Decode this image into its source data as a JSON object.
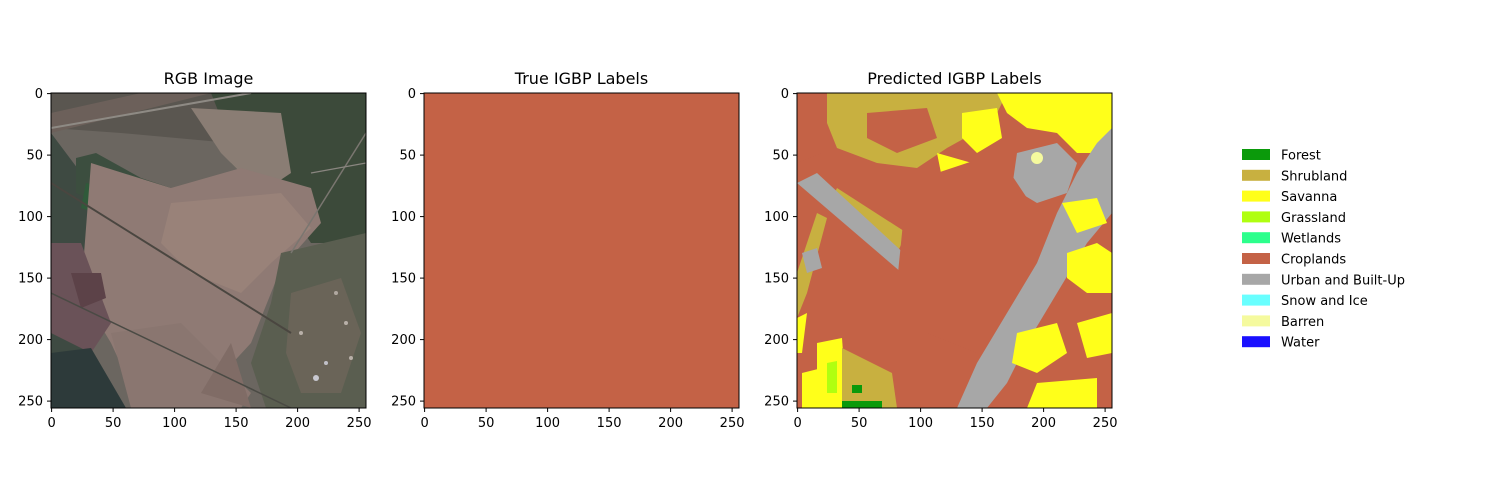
{
  "panels": [
    {
      "title": "RGB Image",
      "xticks": [
        "0",
        "50",
        "100",
        "150",
        "200",
        "250"
      ],
      "yticks": [
        "0",
        "50",
        "100",
        "150",
        "200",
        "250"
      ]
    },
    {
      "title": "True IGBP Labels",
      "xticks": [
        "0",
        "50",
        "100",
        "150",
        "200",
        "250"
      ],
      "yticks": [
        "0",
        "50",
        "100",
        "150",
        "200",
        "250"
      ]
    },
    {
      "title": "Predicted IGBP Labels",
      "xticks": [
        "0",
        "50",
        "100",
        "150",
        "200",
        "250"
      ],
      "yticks": [
        "0",
        "50",
        "100",
        "150",
        "200",
        "250"
      ]
    }
  ],
  "legend": [
    {
      "label": "Forest",
      "color": "#0b9a0b"
    },
    {
      "label": "Shrubland",
      "color": "#c8b040"
    },
    {
      "label": "Savanna",
      "color": "#ffff1a"
    },
    {
      "label": "Grassland",
      "color": "#b0ff10"
    },
    {
      "label": "Wetlands",
      "color": "#2cff8c"
    },
    {
      "label": "Croplands",
      "color": "#c46246"
    },
    {
      "label": "Urban and Built-Up",
      "color": "#a7a7a7"
    },
    {
      "label": "Snow and Ice",
      "color": "#69ffff"
    },
    {
      "label": "Barren",
      "color": "#f5fa9e"
    },
    {
      "label": "Water",
      "color": "#1a10ff"
    }
  ],
  "chart_data": [
    {
      "type": "heatmap",
      "title": "RGB Image",
      "xlim": [
        0,
        256
      ],
      "ylim": [
        256,
        0
      ],
      "xticks": [
        0,
        50,
        100,
        150,
        200,
        250
      ],
      "yticks": [
        0,
        50,
        100,
        150,
        200,
        250
      ]
    },
    {
      "type": "heatmap",
      "title": "True IGBP Labels",
      "xlim": [
        0,
        256
      ],
      "ylim": [
        256,
        0
      ],
      "uniform_class": "Croplands",
      "xticks": [
        0,
        50,
        100,
        150,
        200,
        250
      ],
      "yticks": [
        0,
        50,
        100,
        150,
        200,
        250
      ]
    },
    {
      "type": "heatmap",
      "title": "Predicted IGBP Labels",
      "xlim": [
        0,
        256
      ],
      "ylim": [
        256,
        0
      ],
      "xticks": [
        0,
        50,
        100,
        150,
        200,
        250
      ],
      "yticks": [
        0,
        50,
        100,
        150,
        200,
        250
      ]
    }
  ]
}
